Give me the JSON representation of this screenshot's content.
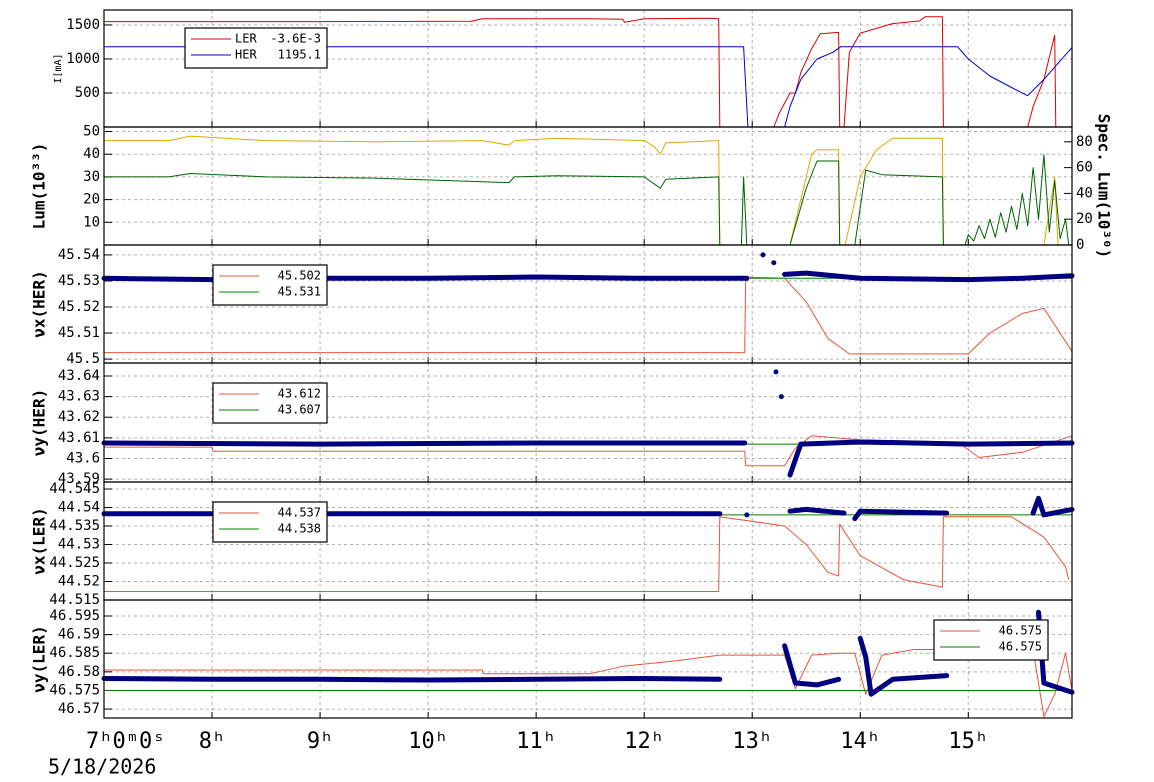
{
  "chart_data": [
    {
      "type": "line",
      "ylabel": "I[mA]",
      "ylim": [
        0,
        1720
      ],
      "yticks": [
        500,
        1000,
        1500
      ],
      "grid": true,
      "legend_loc": "upper left",
      "series": [
        {
          "name": "LER",
          "legend_value": "-3.6E-3",
          "color": "#dd0000",
          "x": [
            7,
            9,
            10.4,
            10.5,
            11.5,
            11.8,
            11.82,
            12.0,
            12.6,
            12.69,
            12.7,
            13.2,
            13.25,
            13.35,
            13.4,
            13.45,
            13.55,
            13.63,
            13.8,
            13.81,
            13.85,
            13.9,
            14.0,
            14.15,
            14.3,
            14.55,
            14.6,
            14.76,
            14.77,
            15.55,
            15.6,
            15.7,
            15.8,
            15.81
          ],
          "values": [
            1550,
            1550,
            1555,
            1590,
            1590,
            1585,
            1540,
            1590,
            1600,
            1590,
            0,
            0,
            200,
            500,
            500,
            800,
            1150,
            1370,
            1390,
            0,
            0,
            1100,
            1380,
            1450,
            1520,
            1560,
            1620,
            1620,
            0,
            0,
            300,
            700,
            1350,
            0
          ]
        },
        {
          "name": "HER",
          "legend_value": "1195.1",
          "color": "#0000cc",
          "x": [
            7,
            12.92,
            12.96,
            13.3,
            13.35,
            13.45,
            13.6,
            13.75,
            13.82,
            14.9,
            15.0,
            15.2,
            15.4,
            15.55,
            15.7,
            15.96
          ],
          "values": [
            1180,
            1180,
            0,
            0,
            300,
            700,
            1000,
            1100,
            1180,
            1180,
            1000,
            750,
            580,
            460,
            700,
            1170
          ]
        }
      ]
    },
    {
      "type": "line",
      "ylabel": "Lum(10³³)",
      "y2label": "Spec. Lum(10³⁰)",
      "ylim": [
        0,
        52
      ],
      "yticks": [
        10,
        20,
        30,
        40,
        50
      ],
      "y2lim": [
        0,
        91.5
      ],
      "y2ticks": [
        0,
        20,
        40,
        60,
        80
      ],
      "grid": true,
      "series": [
        {
          "color": "#e0a800",
          "x": [
            7,
            7.6,
            7.8,
            8.5,
            9.5,
            10.5,
            10.75,
            10.8,
            11.2,
            12.0,
            12.1,
            12.15,
            12.2,
            12.69,
            12.7,
            13.35,
            13.45,
            13.55,
            13.6,
            13.8,
            13.81,
            13.86,
            14.0,
            14.15,
            14.3,
            14.76,
            14.77,
            15.7,
            15.8,
            15.83
          ],
          "values": [
            46,
            46,
            48,
            46,
            45.5,
            46,
            44,
            46,
            47,
            46,
            43,
            40,
            45,
            46,
            0,
            0,
            20,
            40,
            42,
            42,
            0,
            0,
            30,
            42,
            47,
            47,
            0,
            0,
            30,
            0
          ]
        },
        {
          "color": "#006400",
          "x": [
            7,
            7.6,
            7.8,
            8.5,
            9.5,
            10.75,
            10.8,
            11.2,
            12.0,
            12.15,
            12.2,
            12.69,
            12.7,
            12.9,
            12.92,
            12.95,
            13.35,
            13.5,
            13.6,
            13.8,
            13.81,
            13.95,
            14.05,
            14.2,
            14.76,
            14.77
          ],
          "values": [
            30,
            30,
            31.5,
            30,
            29.5,
            27.5,
            30,
            30.5,
            30,
            25,
            29,
            30,
            0,
            0,
            30,
            0,
            0,
            25,
            37,
            37,
            0,
            0,
            33,
            31,
            30,
            0
          ]
        },
        {
          "color": "#006400",
          "axis": "y2",
          "x": [
            14.97,
            15.0,
            15.05,
            15.1,
            15.15,
            15.2,
            15.25,
            15.3,
            15.35,
            15.4,
            15.45,
            15.5,
            15.55,
            15.6,
            15.65,
            15.7,
            15.75,
            15.8,
            15.85,
            15.9,
            15.93
          ],
          "values": [
            0,
            8,
            3,
            15,
            5,
            20,
            6,
            25,
            10,
            30,
            12,
            40,
            15,
            60,
            20,
            70,
            10,
            50,
            5,
            20,
            0
          ]
        }
      ]
    },
    {
      "type": "line",
      "ylabel": "νx(HER)",
      "ylim": [
        45.4985,
        45.5438
      ],
      "yticks": [
        45.5,
        45.51,
        45.52,
        45.53,
        45.54
      ],
      "grid": true,
      "legend_loc": "upper left",
      "series": [
        {
          "legend_value": "45.502",
          "color": "#e8553a",
          "x": [
            7,
            12.93,
            12.94,
            13.3,
            13.5,
            13.7,
            13.9,
            15.0,
            15.2,
            15.5,
            15.7,
            15.96
          ],
          "values": [
            45.5025,
            45.5025,
            45.5315,
            45.531,
            45.522,
            45.508,
            45.502,
            45.502,
            45.51,
            45.5175,
            45.5195,
            45.503
          ]
        },
        {
          "legend_value": "45.531",
          "color": "#008000",
          "x": [
            7,
            15.96
          ],
          "values": [
            45.531,
            45.531
          ]
        },
        {
          "color": "#000080",
          "marker": true,
          "x": [
            7,
            8,
            9,
            10,
            11,
            12,
            12.95,
            13.05,
            13.1,
            13.15,
            13.2,
            13.25,
            13.3,
            13.5,
            14,
            15,
            15.5,
            15.96
          ],
          "values": [
            45.531,
            45.5305,
            45.531,
            45.531,
            45.5315,
            45.531,
            45.531,
            null,
            45.54,
            null,
            45.537,
            null,
            45.5325,
            45.533,
            45.531,
            45.5305,
            45.531,
            45.532
          ]
        }
      ]
    },
    {
      "type": "line",
      "ylabel": "νy(HER)",
      "ylim": [
        43.5886,
        43.6463
      ],
      "yticks": [
        43.59,
        43.6,
        43.61,
        43.62,
        43.63,
        43.64
      ],
      "grid": true,
      "legend_loc": "upper left",
      "series": [
        {
          "legend_value": "43.612",
          "color": "#e8553a",
          "x": [
            7,
            8,
            8.01,
            12.7,
            12.93,
            12.94,
            13.3,
            13.4,
            13.55,
            14.0,
            14.9,
            15.1,
            15.5,
            15.96
          ],
          "values": [
            43.6055,
            43.6055,
            43.6035,
            43.6035,
            43.6035,
            43.5965,
            43.5965,
            43.605,
            43.611,
            43.609,
            43.608,
            43.6005,
            43.603,
            43.611
          ]
        },
        {
          "legend_value": "43.607",
          "color": "#008000",
          "x": [
            7,
            15.96
          ],
          "values": [
            43.607,
            43.607
          ]
        },
        {
          "color": "#000080",
          "marker": true,
          "x": [
            7,
            9,
            11,
            12.93,
            13.2,
            13.22,
            13.25,
            13.27,
            13.3,
            13.35,
            13.45,
            14,
            15,
            15.96
          ],
          "values": [
            43.6075,
            43.607,
            43.6075,
            43.6075,
            null,
            43.642,
            null,
            43.63,
            null,
            43.592,
            43.607,
            43.608,
            43.607,
            43.6075
          ]
        }
      ]
    },
    {
      "type": "line",
      "ylabel": "νx(LER)",
      "ylim": [
        44.515,
        44.5469
      ],
      "yticks": [
        44.515,
        44.52,
        44.525,
        44.53,
        44.535,
        44.54,
        44.545
      ],
      "grid": true,
      "legend_loc": "upper left",
      "series": [
        {
          "legend_value": "44.537",
          "color": "#e8553a",
          "x": [
            7,
            12.69,
            12.7,
            13.3,
            13.5,
            13.7,
            13.8,
            13.81,
            14.0,
            14.4,
            14.76,
            14.77,
            15.4,
            15.7,
            15.9,
            15.93
          ],
          "values": [
            44.5173,
            44.5173,
            44.5375,
            44.535,
            44.53,
            44.5225,
            44.5215,
            44.5355,
            44.527,
            44.5205,
            44.5185,
            44.5375,
            44.5375,
            44.532,
            44.524,
            44.5205
          ]
        },
        {
          "legend_value": "44.538",
          "color": "#008000",
          "x": [
            7,
            15.96
          ],
          "values": [
            44.538,
            44.538
          ]
        },
        {
          "color": "#000080",
          "marker": true,
          "x": [
            7,
            9.8,
            12.7,
            12.9,
            12.95,
            13.25,
            13.35,
            13.5,
            13.85,
            13.9,
            13.95,
            14.0,
            14.8,
            14.9,
            15.6,
            15.65,
            15.7,
            15.96
          ],
          "values": [
            44.5383,
            44.5383,
            44.5383,
            null,
            44.538,
            null,
            44.539,
            44.5395,
            44.5385,
            null,
            44.537,
            44.539,
            44.5385,
            null,
            44.5385,
            44.5425,
            44.538,
            44.5395
          ]
        }
      ]
    },
    {
      "type": "line",
      "ylabel": "νy(LER)",
      "ylim": [
        46.5676,
        46.5993
      ],
      "yticks": [
        46.57,
        46.575,
        46.58,
        46.585,
        46.59,
        46.595
      ],
      "grid": true,
      "legend_loc": "upper right",
      "xlim": [
        7,
        15.96
      ],
      "xticks": [
        {
          "value": 7,
          "label": "7ʰ0ᵐ0ˢ"
        },
        {
          "value": 8,
          "label": "8ʰ"
        },
        {
          "value": 9,
          "label": "9ʰ"
        },
        {
          "value": 10,
          "label": "10ʰ"
        },
        {
          "value": 11,
          "label": "11ʰ"
        },
        {
          "value": 12,
          "label": "12ʰ"
        },
        {
          "value": 13,
          "label": "13ʰ"
        },
        {
          "value": 14,
          "label": "14ʰ"
        },
        {
          "value": 15,
          "label": "15ʰ"
        }
      ],
      "date": "5/18/2026",
      "series": [
        {
          "legend_value": "46.575",
          "color": "#e8553a",
          "x": [
            7,
            10.5,
            10.51,
            11.5,
            11.8,
            12.3,
            12.7,
            13.3,
            13.4,
            13.55,
            13.8,
            13.95,
            14.05,
            14.2,
            14.5,
            15.6,
            15.7,
            15.8,
            15.9,
            15.96
          ],
          "values": [
            46.5805,
            46.5805,
            46.5795,
            46.5795,
            46.5815,
            46.583,
            46.5845,
            46.5845,
            46.5755,
            46.5845,
            46.585,
            46.585,
            46.574,
            46.5845,
            46.586,
            46.586,
            46.568,
            46.574,
            46.585,
            46.575
          ]
        },
        {
          "legend_value": "46.575",
          "color": "#008000",
          "x": [
            7,
            15.96
          ],
          "values": [
            46.575,
            46.575
          ]
        },
        {
          "color": "#000080",
          "marker": true,
          "x": [
            7,
            8,
            9,
            10,
            11,
            12,
            12.7,
            13.0,
            13.3,
            13.4,
            13.6,
            13.8,
            13.9,
            14.0,
            14.05,
            14.1,
            14.3,
            14.8,
            14.9,
            15.65,
            15.7,
            15.96
          ],
          "values": [
            46.5782,
            46.578,
            46.578,
            46.5778,
            46.578,
            46.5782,
            46.578,
            null,
            46.587,
            46.577,
            46.5765,
            46.578,
            null,
            46.589,
            46.584,
            46.574,
            46.578,
            46.579,
            null,
            46.596,
            46.577,
            46.5745
          ]
        }
      ]
    }
  ]
}
